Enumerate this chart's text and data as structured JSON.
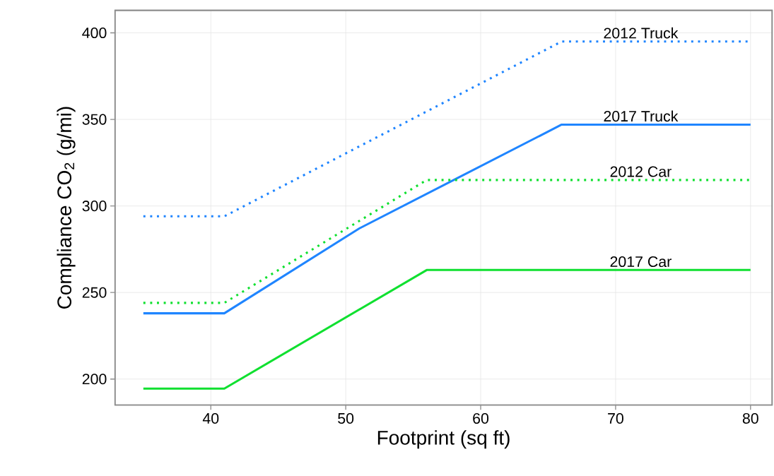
{
  "chart_data": {
    "type": "line",
    "xlabel": "Footprint (sq ft)",
    "ylabel": "Compliance CO$_{2}$ (g/mi)",
    "xlim": [
      32.9,
      81.6
    ],
    "ylim": [
      185,
      413
    ],
    "xticks": [
      40,
      50,
      60,
      70,
      80
    ],
    "yticks": [
      200,
      250,
      300,
      350,
      400
    ],
    "grid": true,
    "legend": false,
    "series": [
      {
        "name": "2012 Truck",
        "color": "#1f85ff",
        "line_style": "dotted",
        "x": [
          35,
          41,
          66,
          80
        ],
        "values": [
          294,
          294,
          395,
          395
        ]
      },
      {
        "name": "2017 Truck",
        "color": "#1f85ff",
        "line_style": "solid",
        "x": [
          35,
          41,
          51,
          66,
          80
        ],
        "values": [
          238,
          238,
          287,
          347,
          347
        ]
      },
      {
        "name": "2012 Car",
        "color": "#10e030",
        "line_style": "dotted",
        "x": [
          35,
          41,
          56,
          80
        ],
        "values": [
          244,
          244,
          315,
          315
        ]
      },
      {
        "name": "2017 Car",
        "color": "#10e030",
        "line_style": "solid",
        "x": [
          35,
          41,
          56,
          80
        ],
        "values": [
          194.5,
          194.5,
          263,
          263
        ]
      }
    ]
  }
}
